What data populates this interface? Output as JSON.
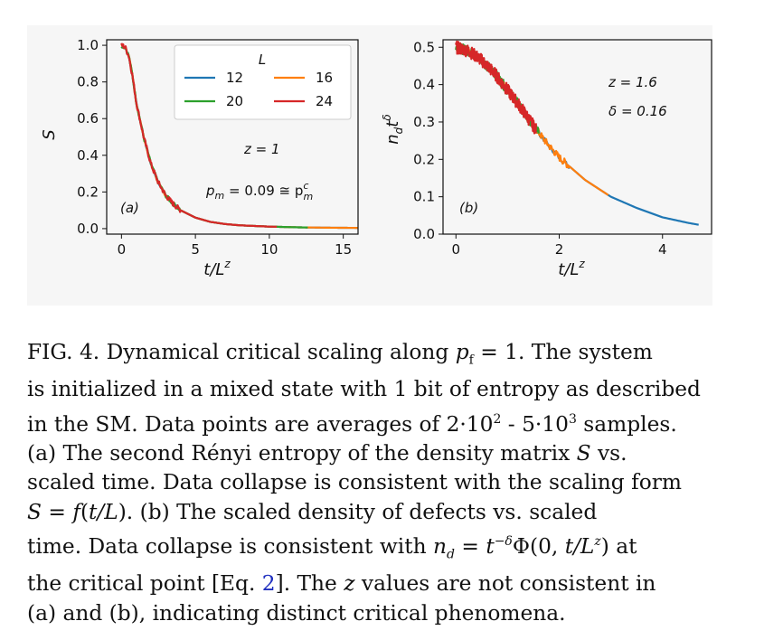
{
  "figure": {
    "panel_a": {
      "label": "(a)",
      "ylabel": "S",
      "xlabel": "t/L",
      "xlabel_sup": "z",
      "legend_title": "L",
      "annotation_z": "z = 1",
      "annotation_pm": "p",
      "annotation_pm_sub": "m",
      "annotation_pm_value": " = 0.09 ≅ p",
      "annotation_pm_sup": "c",
      "annotation_pm_sub2": "m"
    },
    "panel_b": {
      "label": "(b)",
      "ylabel_main": "n",
      "ylabel_sub": "d",
      "ylabel_t": "t",
      "ylabel_sup": "δ",
      "xlabel": "t/L",
      "xlabel_sup": "z",
      "annotation_z": "z = 1.6",
      "annotation_delta": "δ = 0.16"
    }
  },
  "chart_data": [
    {
      "type": "line",
      "title": "",
      "xlabel": "t/L^z",
      "ylabel": "S",
      "xlim": [
        -1,
        16
      ],
      "ylim": [
        -0.03,
        1.03
      ],
      "xticks": [
        0,
        5,
        10,
        15
      ],
      "yticks": [
        0.0,
        0.2,
        0.4,
        0.6,
        0.8,
        1.0
      ],
      "xtick_labels": [
        "0",
        "5",
        "10",
        "15"
      ],
      "ytick_labels": [
        "0.0",
        "0.2",
        "0.4",
        "0.6",
        "0.8",
        "1.0"
      ],
      "legend_location": "top-right",
      "series": [
        {
          "name": "12",
          "color": "#1f77b4",
          "x_max": 16.0
        },
        {
          "name": "16",
          "color": "#ff7f0e",
          "x_max": 16.0
        },
        {
          "name": "20",
          "color": "#2ca02c",
          "x_max": 12.6
        },
        {
          "name": "24",
          "color": "#d62728",
          "x_max": 10.5
        }
      ],
      "curve": {
        "x": [
          0,
          0.25,
          0.5,
          0.75,
          1.0,
          1.5,
          2.0,
          2.5,
          3.0,
          3.5,
          4.0,
          5.0,
          6.0,
          7.0,
          8.0,
          10.0,
          12.0,
          14.0,
          16.0
        ],
        "y": [
          1.0,
          0.99,
          0.94,
          0.83,
          0.69,
          0.5,
          0.35,
          0.25,
          0.18,
          0.135,
          0.1,
          0.06,
          0.037,
          0.025,
          0.018,
          0.011,
          0.007,
          0.005,
          0.004
        ]
      }
    },
    {
      "type": "line",
      "title": "",
      "xlabel": "t/L^z",
      "ylabel": "n_d t^δ",
      "xlim": [
        -0.25,
        4.95
      ],
      "ylim": [
        0.0,
        0.52
      ],
      "xticks": [
        0,
        2,
        4
      ],
      "yticks": [
        0.0,
        0.1,
        0.2,
        0.3,
        0.4,
        0.5
      ],
      "xtick_labels": [
        "0",
        "2",
        "4"
      ],
      "ytick_labels": [
        "0.0",
        "0.1",
        "0.2",
        "0.3",
        "0.4",
        "0.5"
      ],
      "series": [
        {
          "name": "12",
          "color": "#1f77b4",
          "x_max": 4.7
        },
        {
          "name": "16",
          "color": "#ff7f0e",
          "x_max": 2.95
        },
        {
          "name": "20",
          "color": "#2ca02c",
          "x_max": 1.6
        },
        {
          "name": "24",
          "color": "#d62728",
          "x_max": 1.55
        }
      ],
      "curve": {
        "x": [
          0,
          0.25,
          0.5,
          0.75,
          1.0,
          1.25,
          1.5,
          1.75,
          2.0,
          2.5,
          3.0,
          3.5,
          4.0,
          4.5,
          4.7
        ],
        "y": [
          0.5,
          0.49,
          0.465,
          0.43,
          0.385,
          0.34,
          0.29,
          0.245,
          0.205,
          0.145,
          0.1,
          0.07,
          0.045,
          0.03,
          0.025
        ]
      }
    }
  ],
  "caption": {
    "l1_a": "FIG. 4. Dynamical critical scaling along ",
    "l1_pf": "p",
    "l1_pf_sub": "f",
    "l1_b": " = 1. The system",
    "l2": "is initialized in a mixed state with 1 bit of entropy as described",
    "l3_a": "in the SM. Data points are averages of 2·10",
    "l3_sup1": "2",
    "l3_b": " - 5·10",
    "l3_sup2": "3",
    "l3_c": " samples.",
    "l4_a": "(a) The second Rényi entropy of the density matrix ",
    "l4_S": "S",
    "l4_b": " vs.",
    "l5": "scaled time. Data collapse is consistent with the scaling form",
    "l6_a": "S",
    "l6_b": " = ",
    "l6_c": "f",
    "l6_d": "(",
    "l6_e": "t/L",
    "l6_f": ").  (b) The scaled density of defects vs.  scaled",
    "l7_a": "time. Data collapse is consistent with ",
    "l7_n": "n",
    "l7_d": "d",
    "l7_b": " = ",
    "l7_t": "t",
    "l7_sup": "−δ",
    "l7_c": "Φ(0, ",
    "l7_t2": "t/L",
    "l7_sup2": "z",
    "l7_e": ") at",
    "l8_a": "the critical point [Eq. ",
    "l8_ref": "2",
    "l8_b": "]. The ",
    "l8_z": "z",
    "l8_c": " values are not consistent in",
    "l9": "(a) and (b), indicating distinct critical phenomena."
  }
}
